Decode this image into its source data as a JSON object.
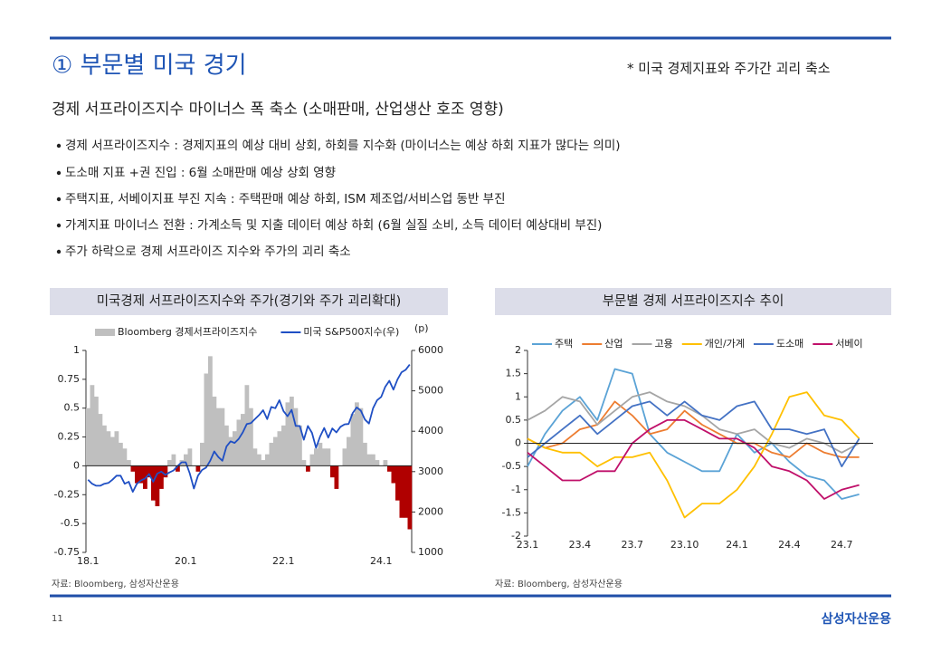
{
  "header": {
    "title": "① 부문별 미국 경기",
    "note": "* 미국 경제지표와 주가간 괴리 축소"
  },
  "subtitle": "경제 서프라이즈지수 마이너스 폭 축소 (소매판매, 산업생산 호조 영향)",
  "bullets": [
    "경제 서프라이즈지수 : 경제지표의 예상 대비 상회, 하회를 지수화 (마이너스는 예상 하회 지표가 많다는 의미)",
    "도소매 지표 +권 진입 : 6월 소매판매 예상 상회 영향",
    "주택지표, 서베이지표 부진 지속 : 주택판매 예상 하회, ISM 제조업/서비스업  동반 부진",
    "가계지표 마이너스 전환 : 가계소득 및 지출 데이터 예상 하회 (6월 실질 소비, 소득 데이터 예상대비 부진)",
    "주가 하락으로 경제 서프라이즈 지수와 주가의 괴리 축소"
  ],
  "footer": {
    "page": "11",
    "brand": "삼성자산운용"
  },
  "chart_data": [
    {
      "type": "bar",
      "title": "미국경제 서프라이즈지수와  주가(경기와 주가 괴리확대)",
      "source": "자료: Bloomberg, 삼성자산운용",
      "y2label": "(p)",
      "categories": [
        "18.1",
        null,
        null,
        null,
        null,
        null,
        null,
        null,
        null,
        null,
        null,
        null,
        null,
        null,
        null,
        null,
        null,
        null,
        null,
        null,
        null,
        null,
        null,
        null,
        "20.1",
        null,
        null,
        null,
        null,
        null,
        null,
        null,
        null,
        null,
        null,
        null,
        null,
        null,
        null,
        null,
        null,
        null,
        null,
        null,
        null,
        null,
        null,
        null,
        "22.1",
        null,
        null,
        null,
        null,
        null,
        null,
        null,
        null,
        null,
        null,
        null,
        null,
        null,
        null,
        null,
        null,
        null,
        null,
        null,
        null,
        null,
        null,
        null,
        "24.1",
        null,
        null,
        null,
        null,
        null,
        null,
        null
      ],
      "series": [
        {
          "name": "Bloomberg 경제서프라이즈지수",
          "type": "bar",
          "color": "#bfbfbf",
          "negative_color": "#b00000",
          "values": [
            0.5,
            0.7,
            0.6,
            0.45,
            0.35,
            0.3,
            0.25,
            0.3,
            0.2,
            0.15,
            0.05,
            -0.05,
            -0.15,
            -0.15,
            -0.2,
            -0.1,
            -0.3,
            -0.35,
            -0.2,
            -0.1,
            0.05,
            0.1,
            -0.05,
            0.05,
            0.1,
            0.15,
            0.0,
            -0.05,
            0.2,
            0.8,
            0.95,
            0.6,
            0.5,
            0.5,
            0.35,
            0.25,
            0.3,
            0.4,
            0.45,
            0.7,
            0.5,
            0.15,
            0.1,
            0.05,
            0.1,
            0.2,
            0.25,
            0.3,
            0.35,
            0.55,
            0.6,
            0.5,
            0.35,
            0.05,
            -0.05,
            0.1,
            0.15,
            0.2,
            0.15,
            0.15,
            -0.1,
            -0.2,
            0.0,
            0.15,
            0.25,
            0.45,
            0.55,
            0.5,
            0.2,
            0.1,
            0.1,
            0.05,
            0.0,
            0.05,
            -0.05,
            -0.15,
            -0.3,
            -0.45,
            -0.45,
            -0.55
          ]
        },
        {
          "name": "미국 S&P500지수(우)",
          "type": "line",
          "axis": "y2",
          "color": "#1f4fc4",
          "values": [
            2800,
            2700,
            2650,
            2650,
            2700,
            2720,
            2800,
            2900,
            2900,
            2700,
            2750,
            2500,
            2700,
            2780,
            2830,
            2940,
            2750,
            2950,
            3000,
            2920,
            2980,
            3030,
            3140,
            3230,
            3230,
            2950,
            2580,
            2900,
            3040,
            3100,
            3270,
            3500,
            3360,
            3270,
            3620,
            3750,
            3710,
            3810,
            3970,
            4180,
            4200,
            4300,
            4400,
            4520,
            4300,
            4600,
            4570,
            4770,
            4500,
            4370,
            4530,
            4130,
            4130,
            3790,
            4130,
            3960,
            3590,
            3870,
            4080,
            3840,
            4070,
            3970,
            4110,
            4170,
            4180,
            4450,
            4590,
            4510,
            4290,
            4190,
            4570,
            4770,
            4850,
            5100,
            5250,
            5030,
            5280,
            5460,
            5520,
            5650
          ]
        }
      ],
      "ylim": [
        -0.75,
        1
      ],
      "yticks": [
        1,
        0.75,
        0.5,
        0.25,
        0,
        -0.25,
        -0.5,
        -0.75
      ],
      "y2lim": [
        1000,
        6000
      ],
      "y2ticks": [
        6000,
        5000,
        4000,
        3000,
        2000,
        1000
      ]
    },
    {
      "type": "line",
      "title": "부문별 경제 서프라이즈지수  추이",
      "source": "자료: Bloomberg, 삼성자산운용",
      "categories": [
        "23.1",
        null,
        null,
        "23.4",
        null,
        null,
        "23.7",
        null,
        null,
        "23.10",
        null,
        null,
        "24.1",
        null,
        null,
        "24.4",
        null,
        null,
        "24.7",
        null
      ],
      "series": [
        {
          "name": "주택",
          "color": "#5ba3d6",
          "values": [
            -0.5,
            0.2,
            0.7,
            1.0,
            0.5,
            1.6,
            1.5,
            0.2,
            -0.2,
            -0.4,
            -0.6,
            -0.6,
            0.2,
            -0.2,
            0.0,
            -0.4,
            -0.7,
            -0.8,
            -1.2,
            -1.1
          ]
        },
        {
          "name": "산업",
          "color": "#ed7d31",
          "values": [
            0.1,
            -0.1,
            0.0,
            0.3,
            0.4,
            0.9,
            0.6,
            0.2,
            0.3,
            0.7,
            0.4,
            0.2,
            0.0,
            0.0,
            -0.2,
            -0.3,
            0.0,
            -0.2,
            -0.3,
            -0.3
          ]
        },
        {
          "name": "고용",
          "color": "#a5a5a5",
          "values": [
            0.5,
            0.7,
            1.0,
            0.9,
            0.4,
            0.7,
            1.0,
            1.1,
            0.9,
            0.8,
            0.6,
            0.3,
            0.2,
            0.3,
            0.0,
            -0.1,
            0.1,
            0.0,
            -0.2,
            0.0
          ]
        },
        {
          "name": "개인/가계",
          "color": "#ffc000",
          "values": [
            0.1,
            -0.1,
            -0.2,
            -0.2,
            -0.5,
            -0.3,
            -0.3,
            -0.2,
            -0.8,
            -1.6,
            -1.3,
            -1.3,
            -1.0,
            -0.5,
            0.2,
            1.0,
            1.1,
            0.6,
            0.5,
            0.1
          ]
        },
        {
          "name": "도소매",
          "color": "#4472c4",
          "values": [
            -0.3,
            0.0,
            0.3,
            0.6,
            0.2,
            0.5,
            0.8,
            0.9,
            0.6,
            0.9,
            0.6,
            0.5,
            0.8,
            0.9,
            0.3,
            0.3,
            0.2,
            0.3,
            -0.5,
            0.1
          ]
        },
        {
          "name": "서베이",
          "color": "#c0106a",
          "values": [
            -0.2,
            -0.5,
            -0.8,
            -0.8,
            -0.6,
            -0.6,
            0.0,
            0.3,
            0.5,
            0.5,
            0.3,
            0.1,
            0.1,
            -0.1,
            -0.5,
            -0.6,
            -0.8,
            -1.2,
            -1.0,
            -0.9
          ]
        }
      ],
      "ylim": [
        -2,
        2
      ],
      "yticks": [
        2,
        1.5,
        1,
        0.5,
        0,
        -0.5,
        -1,
        -1.5,
        -2
      ]
    }
  ]
}
